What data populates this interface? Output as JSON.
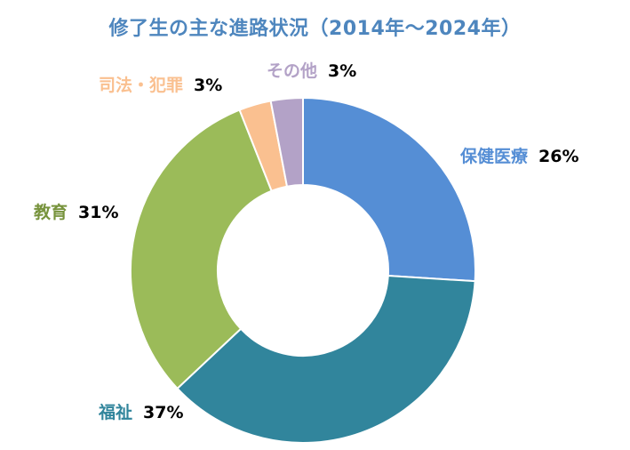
{
  "chart_data": {
    "type": "pie",
    "donut": true,
    "title": "修了生の主な進路状況（2014年～2024年）",
    "unit": "%",
    "slices": [
      {
        "label": "保健医療",
        "value": 26,
        "display": "26%",
        "color": "#558ED5"
      },
      {
        "label": "福祉",
        "value": 37,
        "display": "37%",
        "color": "#31859C"
      },
      {
        "label": "教育",
        "value": 31,
        "display": "31%",
        "color": "#9BBB59"
      },
      {
        "label": "司法・犯罪",
        "value": 3,
        "display": "3%",
        "color": "#FAC090"
      },
      {
        "label": "その他",
        "value": 3,
        "display": "3%",
        "color": "#B3A2C7"
      }
    ],
    "start_angle_deg": 0,
    "direction": "clockwise",
    "legend": "none (category labels beside slices)"
  },
  "colors": {
    "title": "#4E86BE",
    "label_保健医療": "#558ED5",
    "label_福祉": "#31859C",
    "label_教育": "#77933C",
    "label_司法・犯罪": "#FAC090",
    "label_その他": "#B3A2C7"
  }
}
